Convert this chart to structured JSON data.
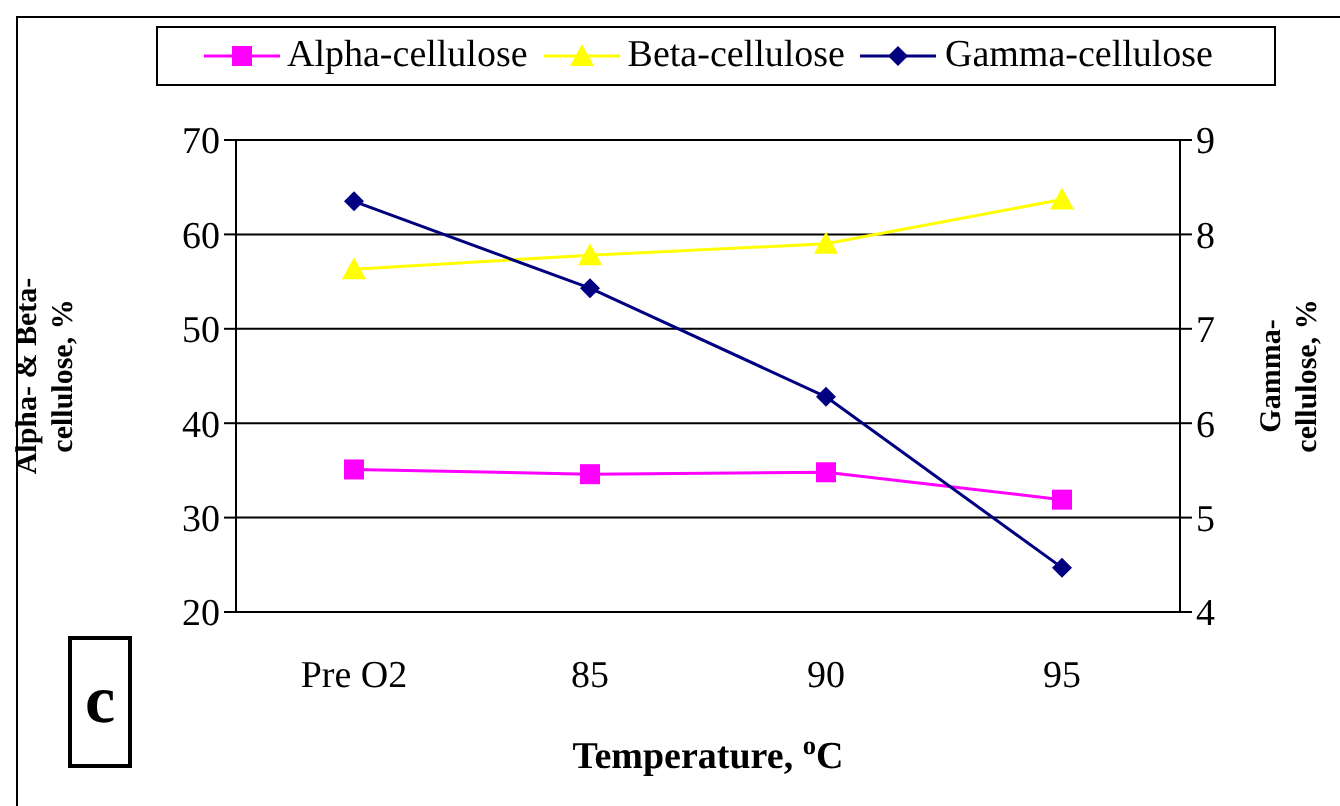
{
  "chart_data": {
    "type": "line",
    "xlabel": "Temperature, $^{o}$C",
    "ylabel": "Alpha- & Beta-cellulose, %",
    "y2label": "Gamma-cellulose, %",
    "categories": [
      "Pre O2",
      "85",
      "90",
      "95"
    ],
    "series": [
      {
        "name": "Alpha-cellulose",
        "color": "#ff00ff",
        "marker": "square",
        "values": [
          35.1,
          34.6,
          34.8,
          31.9
        ]
      },
      {
        "name": "Beta-cellulose",
        "color": "#ffff00",
        "marker": "triangle",
        "values": [
          56.3,
          57.8,
          59.0,
          63.7
        ]
      },
      {
        "name": "Gamma-cellulose",
        "color": "#000080",
        "marker": "diamond",
        "axis": "y2",
        "values": [
          8.35,
          7.43,
          6.28,
          4.47
        ]
      }
    ],
    "ylim": [
      20,
      70
    ],
    "yticks": [
      20,
      30,
      40,
      50,
      60,
      70
    ],
    "y2lim": [
      4,
      9
    ],
    "y2ticks": [
      4,
      5,
      6,
      7,
      8,
      9
    ],
    "grid": "y",
    "legend": "top",
    "line_style": "solid",
    "annotations": [
      "c"
    ]
  }
}
